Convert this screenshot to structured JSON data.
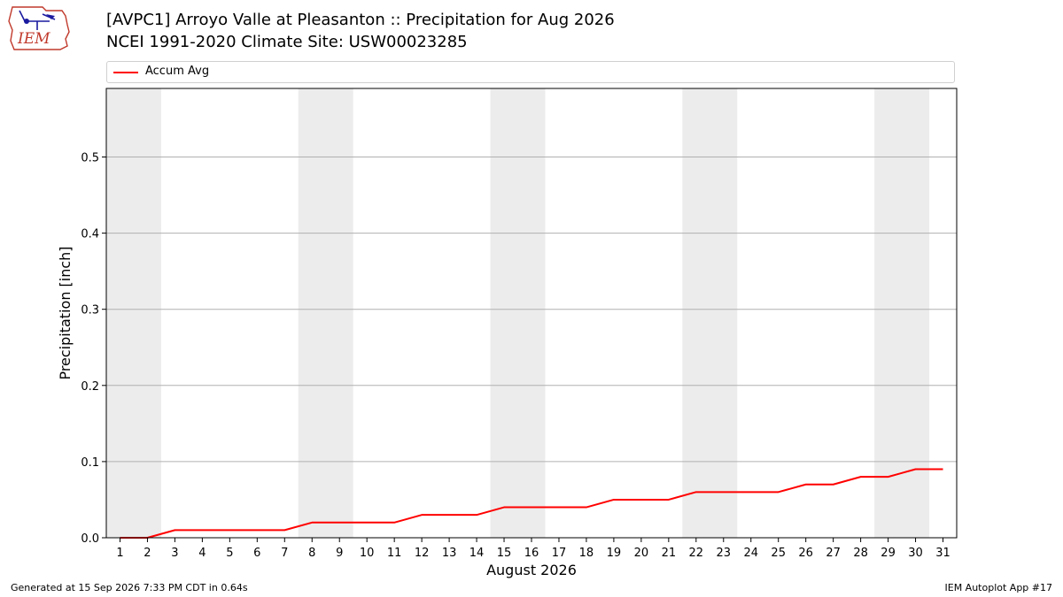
{
  "header": {
    "logo_text": "IEM",
    "title_line1": "[AVPC1] Arroyo Valle at Pleasanton :: Precipitation for Aug 2026",
    "title_line2": "NCEI 1991-2020 Climate Site: USW00023285"
  },
  "footer": {
    "generated": "Generated at 15 Sep 2026 7:33 PM CDT in 0.64s",
    "app": "IEM Autoplot App #17"
  },
  "colors": {
    "series": "#ff0000",
    "weekend_band": "#ececec",
    "grid": "#b0b0b0"
  },
  "chart_data": {
    "type": "line",
    "title": "[AVPC1] Arroyo Valle at Pleasanton :: Precipitation for Aug 2026",
    "subtitle": "NCEI 1991-2020 Climate Site: USW00023285",
    "xlabel": "August 2026",
    "ylabel": "Precipitation [inch]",
    "xlim": [
      0.5,
      31.5
    ],
    "ylim": [
      0,
      0.59
    ],
    "x_ticks": [
      1,
      2,
      3,
      4,
      5,
      6,
      7,
      8,
      9,
      10,
      11,
      12,
      13,
      14,
      15,
      16,
      17,
      18,
      19,
      20,
      21,
      22,
      23,
      24,
      25,
      26,
      27,
      28,
      29,
      30,
      31
    ],
    "y_ticks": [
      0.0,
      0.1,
      0.2,
      0.3,
      0.4,
      0.5
    ],
    "y_tick_labels": [
      "0.0",
      "0.1",
      "0.2",
      "0.3",
      "0.4",
      "0.5"
    ],
    "grid": "y",
    "legend_position": "top",
    "weekend_bands": [
      [
        0.5,
        2.5
      ],
      [
        7.5,
        9.5
      ],
      [
        14.5,
        16.5
      ],
      [
        21.5,
        23.5
      ],
      [
        28.5,
        30.5
      ]
    ],
    "series": [
      {
        "name": "Accum Avg",
        "color": "#ff0000",
        "x": [
          1,
          2,
          3,
          4,
          5,
          6,
          7,
          8,
          9,
          10,
          11,
          12,
          13,
          14,
          15,
          16,
          17,
          18,
          19,
          20,
          21,
          22,
          23,
          24,
          25,
          26,
          27,
          28,
          29,
          30,
          31
        ],
        "values": [
          0.0,
          0.0,
          0.01,
          0.01,
          0.01,
          0.01,
          0.01,
          0.02,
          0.02,
          0.02,
          0.02,
          0.03,
          0.03,
          0.03,
          0.04,
          0.04,
          0.04,
          0.04,
          0.05,
          0.05,
          0.05,
          0.06,
          0.06,
          0.06,
          0.06,
          0.07,
          0.07,
          0.08,
          0.08,
          0.09,
          0.09
        ]
      }
    ]
  }
}
